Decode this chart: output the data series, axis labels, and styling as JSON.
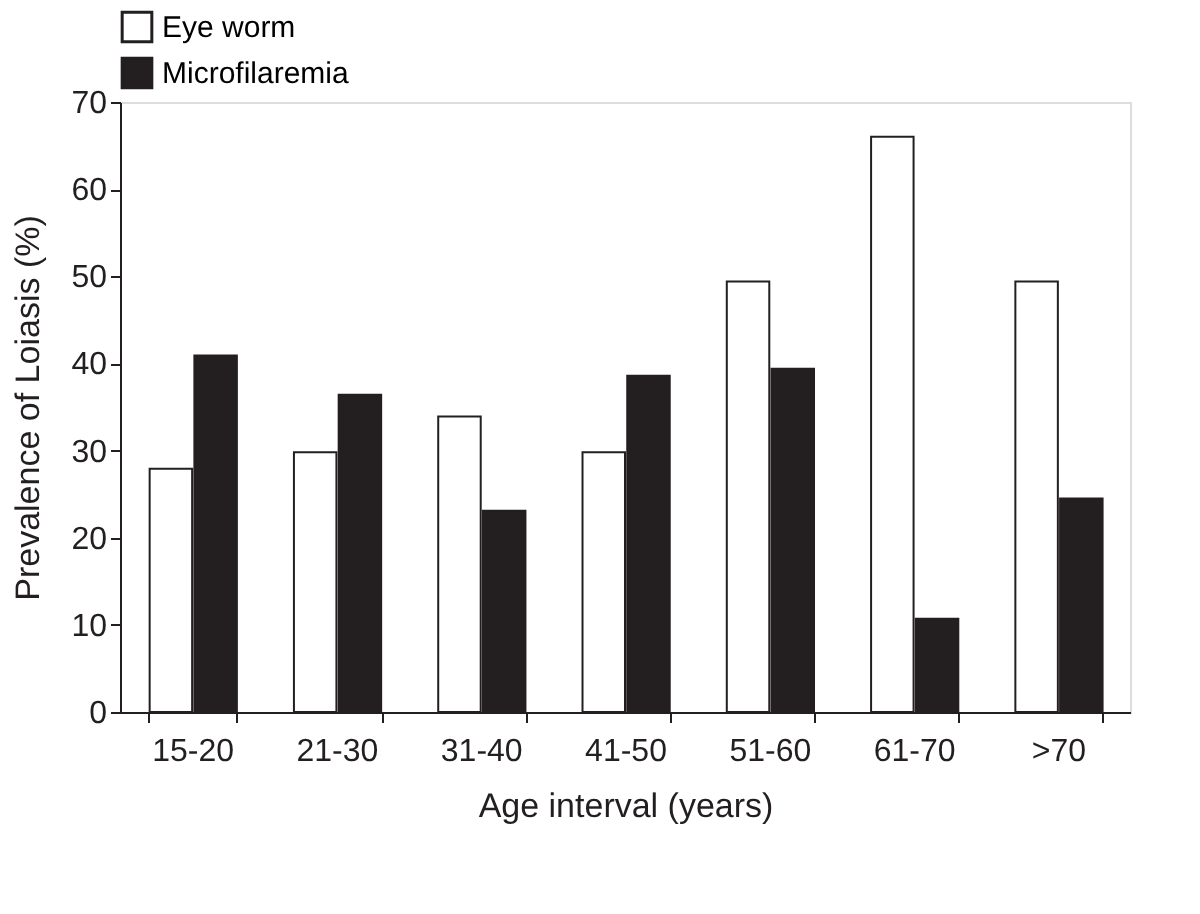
{
  "chart_data": {
    "type": "bar",
    "xlabel": "Age interval (years)",
    "ylabel": "Prevalence of Loiasis (%)",
    "categories": [
      "15-20",
      "21-30",
      "31-40",
      "41-50",
      "51-60",
      "61-70",
      ">70"
    ],
    "series": [
      {
        "name": "Eye worm",
        "color": "#ffffff",
        "values": [
          27.9,
          29.8,
          33.9,
          29.8,
          49.4,
          66,
          49.4
        ]
      },
      {
        "name": "Microfilaremia",
        "color": "#231f20",
        "values": [
          40.9,
          36.4,
          23.1,
          38.6,
          39.4,
          10.7,
          24.5
        ]
      }
    ],
    "ylim": [
      0,
      70
    ],
    "yticks": [
      0,
      10,
      20,
      30,
      40,
      50,
      60,
      70
    ],
    "grid": false,
    "legend": "top"
  }
}
